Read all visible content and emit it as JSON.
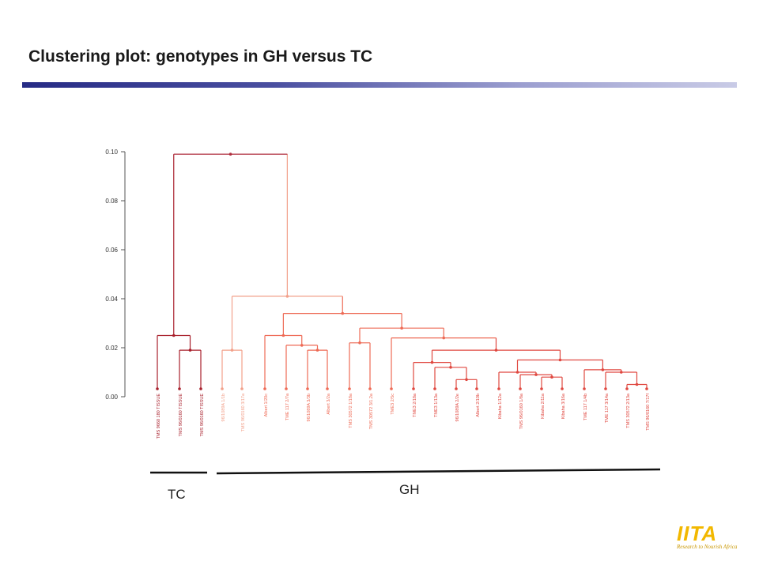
{
  "title": "Clustering plot: genotypes in GH versus TC",
  "colors": {
    "tc_cluster": "#a8202c",
    "gh_light": "#f2a08a",
    "gh_mid": "#ee6a55",
    "gh_dark": "#e04840",
    "root": "#b03040"
  },
  "chart_data": {
    "type": "dendrogram",
    "y_ticks": [
      "0.00",
      "0.02",
      "0.04",
      "0.06",
      "0.08",
      "0.10"
    ],
    "y_values": [
      0.0,
      0.02,
      0.04,
      0.06,
      0.08,
      0.1
    ],
    "ylim": [
      0.0,
      0.1
    ],
    "leaves": [
      "TMS 9660 180 TISSUE",
      "TMS 96/0160 TISSUE",
      "TMS 96/0160 TISSUE",
      "96/1089A 1/1b",
      "TMS 96/0160 3/17a",
      "Albert 1/20c",
      "TME 117 2/7a",
      "96/1089A 3/3b",
      "Albert 3/2a",
      "TMS 30572 1/18a",
      "TMS 30572 3/1.2a",
      "TME3 2/5c",
      "TME3 2/18a",
      "TME3 1/13a",
      "96/1089A 2/2e",
      "Albert 2/10b",
      "Kibaha 1/12a",
      "TMS 96/0160 1/8a",
      "Kibaha 2/11a",
      "Kibaha 3/16a",
      "TME 117 1/4b",
      "TME 117 3/14a",
      "TMS 30572 2/13a",
      "TMS 96/0160 7/17f"
    ],
    "groups": [
      {
        "label": "TC",
        "leaf_range": [
          0,
          2
        ]
      },
      {
        "label": "GH",
        "leaf_range": [
          3,
          23
        ]
      }
    ],
    "merges": [
      {
        "left": "L1",
        "right": "L2",
        "height": 0.019,
        "id": "a"
      },
      {
        "left": "L0",
        "right": "a",
        "height": 0.025,
        "id": "tc"
      },
      {
        "left": "L3",
        "right": "L4",
        "height": 0.019,
        "id": "b"
      },
      {
        "left": "L7",
        "right": "L8",
        "height": 0.019,
        "id": "c"
      },
      {
        "left": "L6",
        "right": "c",
        "height": 0.021,
        "id": "d"
      },
      {
        "left": "L5",
        "right": "d",
        "height": 0.025,
        "id": "e"
      },
      {
        "left": "L9",
        "right": "L10",
        "height": 0.022,
        "id": "f"
      },
      {
        "left": "L14",
        "right": "L15",
        "height": 0.007,
        "id": "g"
      },
      {
        "left": "L13",
        "right": "g",
        "height": 0.012,
        "id": "h"
      },
      {
        "left": "L12",
        "right": "h",
        "height": 0.014,
        "id": "i"
      },
      {
        "left": "L18",
        "right": "L19",
        "height": 0.008,
        "id": "j"
      },
      {
        "left": "L17",
        "right": "j",
        "height": 0.009,
        "id": "k"
      },
      {
        "left": "L16",
        "right": "k",
        "height": 0.01,
        "id": "l"
      },
      {
        "left": "L22",
        "right": "L23",
        "height": 0.005,
        "id": "m"
      },
      {
        "left": "L21",
        "right": "m",
        "height": 0.01,
        "id": "n"
      },
      {
        "left": "L20",
        "right": "n",
        "height": 0.011,
        "id": "o"
      },
      {
        "left": "l",
        "right": "o",
        "height": 0.015,
        "id": "p"
      },
      {
        "left": "i",
        "right": "p",
        "height": 0.019,
        "id": "q"
      },
      {
        "left": "L11",
        "right": "q",
        "height": 0.024,
        "id": "r"
      },
      {
        "left": "f",
        "right": "r",
        "height": 0.028,
        "id": "s"
      },
      {
        "left": "e",
        "right": "s",
        "height": 0.034,
        "id": "t"
      },
      {
        "left": "b",
        "right": "t",
        "height": 0.041,
        "id": "gh"
      },
      {
        "left": "tc",
        "right": "gh",
        "height": 0.099,
        "id": "root"
      }
    ]
  },
  "logo": {
    "mark": "IITA",
    "tagline": "Research to Nourish Africa"
  }
}
